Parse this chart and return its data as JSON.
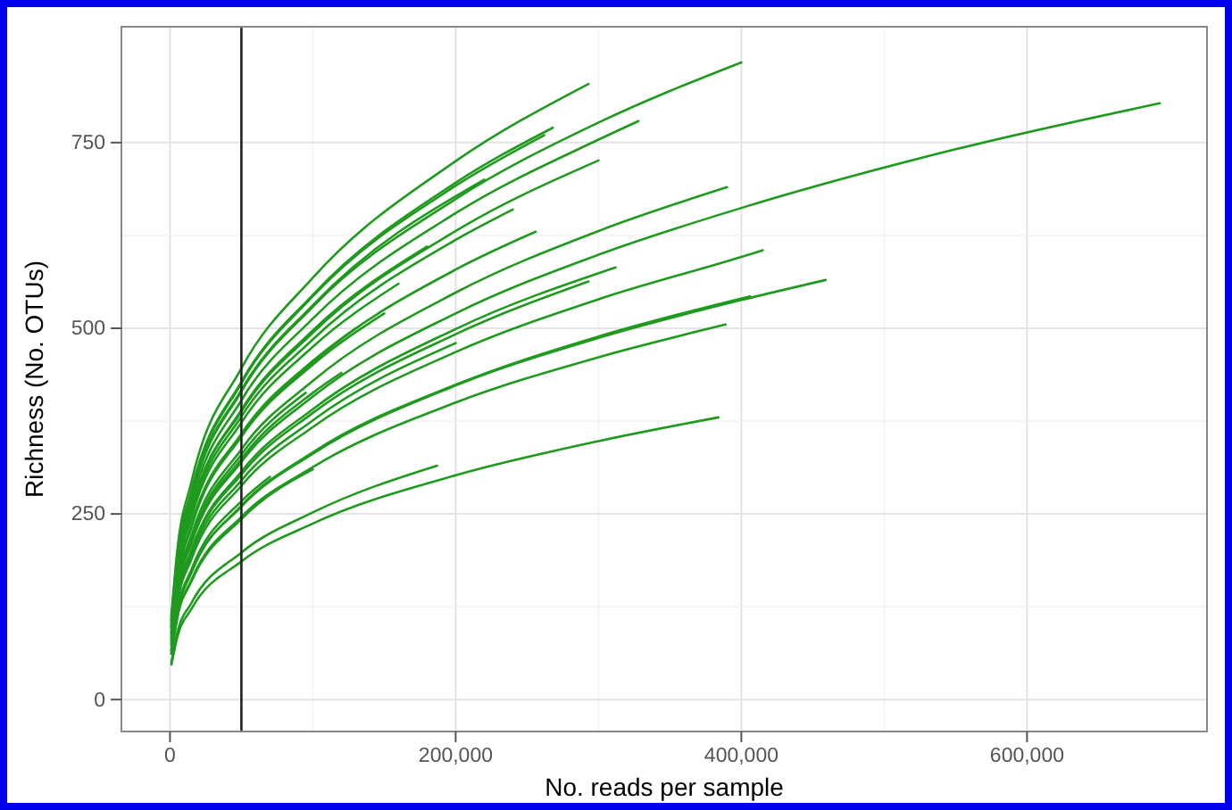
{
  "chart_data": {
    "type": "line",
    "xlabel": "No. reads per sample",
    "ylabel": "Richness (No. OTUs)",
    "xlim": [
      -34000,
      726000
    ],
    "ylim": [
      -43,
      906
    ],
    "xticks": [
      0,
      {
        "value": 200000,
        "label": "200,000"
      },
      {
        "value": 400000,
        "label": "400,000"
      },
      {
        "value": 600000,
        "label": "600,000"
      }
    ],
    "yticks": [
      0,
      250,
      500,
      750
    ],
    "grid": true,
    "marker": "none",
    "line_style": "solid",
    "ref_lines": [
      {
        "axis": "x",
        "value": 50000,
        "color": "#222222"
      }
    ],
    "series": [
      {
        "color": "#1f9a1f",
        "x": [
          1000,
          5000,
          15000,
          50000,
          100000,
          200000,
          300000,
          400000
        ],
        "values": [
          105,
          186,
          272,
          415,
          529,
          674,
          777,
          858
        ]
      },
      {
        "color": "#1f9a1f",
        "x": [
          1000,
          5000,
          15000,
          50000,
          100000,
          200000,
          300000,
          400000,
          550000,
          693000
        ],
        "values": [
          81,
          143,
          210,
          320,
          408,
          520,
          599,
          662,
          741,
          803
        ]
      },
      {
        "color": "#1f9a1f",
        "x": [
          1000,
          5000,
          15000,
          50000,
          100000,
          200000,
          293000
        ],
        "values": [
          113,
          199,
          293,
          446,
          568,
          725,
          829
        ]
      },
      {
        "color": "#1f9a1f",
        "x": [
          1000,
          5000,
          15000,
          50000,
          100000,
          200000,
          300000,
          328000
        ],
        "values": [
          102,
          180,
          264,
          403,
          513,
          655,
          754,
          779
        ]
      },
      {
        "color": "#1f9a1f",
        "x": [
          1000,
          5000,
          15000,
          50000,
          100000,
          200000,
          268000
        ],
        "values": [
          109,
          191,
          281,
          428,
          545,
          696,
          770
        ]
      },
      {
        "color": "#1f9a1f",
        "x": [
          1000,
          5000,
          15000,
          50000,
          100000,
          200000,
          262000
        ],
        "values": [
          108,
          190,
          279,
          426,
          543,
          692,
          760
        ]
      },
      {
        "color": "#1f9a1f",
        "x": [
          1000,
          5000,
          15000,
          50000,
          100000,
          200000,
          300000
        ],
        "values": [
          99,
          173,
          255,
          388,
          494,
          631,
          726
        ]
      },
      {
        "color": "#1f9a1f",
        "x": [
          1000,
          5000,
          15000,
          50000,
          100000,
          200000,
          300000,
          390000
        ],
        "values": [
          86,
          151,
          221,
          337,
          429,
          548,
          631,
          690
        ]
      },
      {
        "color": "#1f9a1f",
        "x": [
          1000,
          5000,
          15000,
          50000,
          100000,
          200000,
          300000,
          400000,
          415000
        ],
        "values": [
          73,
          129,
          189,
          288,
          367,
          468,
          539,
          596,
          605
        ]
      },
      {
        "color": "#1f9a1f",
        "x": [
          1000,
          5000,
          15000,
          50000,
          100000,
          200000,
          300000,
          400000,
          459000
        ],
        "values": [
          66,
          116,
          171,
          260,
          331,
          423,
          487,
          538,
          565
        ]
      },
      {
        "color": "#1f9a1f",
        "x": [
          1000,
          5000,
          15000,
          50000,
          100000,
          200000,
          300000,
          406000
        ],
        "values": [
          66,
          117,
          171,
          261,
          333,
          424,
          489,
          543
        ]
      },
      {
        "color": "#1f9a1f",
        "x": [
          1000,
          5000,
          15000,
          50000,
          100000,
          200000,
          300000,
          389000
        ],
        "values": [
          62,
          110,
          161,
          246,
          313,
          400,
          461,
          505
        ]
      },
      {
        "color": "#1f9a1f",
        "x": [
          1000,
          5000,
          15000,
          50000,
          100000,
          200000,
          300000,
          384000
        ],
        "values": [
          47,
          83,
          122,
          186,
          237,
          302,
          348,
          380
        ]
      },
      {
        "color": "#1f9a1f",
        "x": [
          1000,
          5000,
          15000,
          50000,
          100000,
          187000
        ],
        "values": [
          50,
          89,
          130,
          198,
          252,
          315
        ]
      },
      {
        "color": "#1f9a1f",
        "x": [
          1000,
          5000,
          15000,
          50000,
          100000,
          200000,
          293000
        ],
        "values": [
          77,
          135,
          199,
          303,
          386,
          492,
          563
        ]
      },
      {
        "color": "#1f9a1f",
        "x": [
          1000,
          5000,
          15000,
          50000,
          100000,
          200000,
          312000
        ],
        "values": [
          78,
          137,
          201,
          307,
          391,
          499,
          582
        ]
      },
      {
        "color": "#1f9a1f",
        "x": [
          1000,
          5000,
          15000,
          50000,
          100000,
          200000,
          256000
        ],
        "values": [
          90,
          159,
          234,
          356,
          454,
          579,
          630
        ]
      },
      {
        "color": "#1f9a1f",
        "x": [
          1000,
          5000,
          15000,
          50000,
          100000,
          200000,
          240000
        ],
        "values": [
          97,
          170,
          250,
          381,
          485,
          619,
          660
        ]
      },
      {
        "color": "#1f9a1f",
        "x": [
          1000,
          5000,
          15000,
          50000,
          100000,
          180000
        ],
        "values": [
          99,
          174,
          256,
          390,
          497,
          610
        ]
      },
      {
        "color": "#1f9a1f",
        "x": [
          1000,
          5000,
          15000,
          50000,
          100000,
          150000
        ],
        "values": [
          90,
          158,
          232,
          354,
          451,
          520
        ]
      },
      {
        "color": "#1f9a1f",
        "x": [
          1000,
          5000,
          15000,
          50000,
          100000,
          120000
        ],
        "values": [
          82,
          145,
          213,
          324,
          413,
          440
        ]
      },
      {
        "color": "#1f9a1f",
        "x": [
          1000,
          5000,
          15000,
          50000,
          100000
        ],
        "values": [
          62,
          109,
          159,
          243,
          310
        ]
      },
      {
        "color": "#1f9a1f",
        "x": [
          1000,
          5000,
          15000,
          50000,
          100000,
          160000
        ],
        "values": [
          95,
          167,
          245,
          373,
          475,
          560
        ]
      },
      {
        "color": "#1f9a1f",
        "x": [
          1000,
          5000,
          15000,
          50000,
          100000,
          220000
        ],
        "values": [
          106,
          186,
          274,
          417,
          531,
          700
        ]
      },
      {
        "color": "#1f9a1f",
        "x": [
          1000,
          5000,
          15000,
          50000,
          100000,
          200000
        ],
        "values": [
          75,
          132,
          194,
          295,
          376,
          480
        ]
      },
      {
        "color": "#1f9a1f",
        "x": [
          1000,
          5000,
          15000,
          50000,
          100000,
          130000
        ],
        "values": [
          91,
          160,
          235,
          358,
          456,
          500
        ]
      },
      {
        "color": "#1f9a1f",
        "x": [
          1000,
          5000,
          15000,
          50000,
          95000
        ],
        "values": [
          84,
          148,
          216,
          330,
          413
        ]
      },
      {
        "color": "#1f9a1f",
        "x": [
          1000,
          5000,
          15000,
          50000,
          70000
        ],
        "values": [
          68,
          119,
          175,
          267,
          300
        ]
      }
    ]
  }
}
